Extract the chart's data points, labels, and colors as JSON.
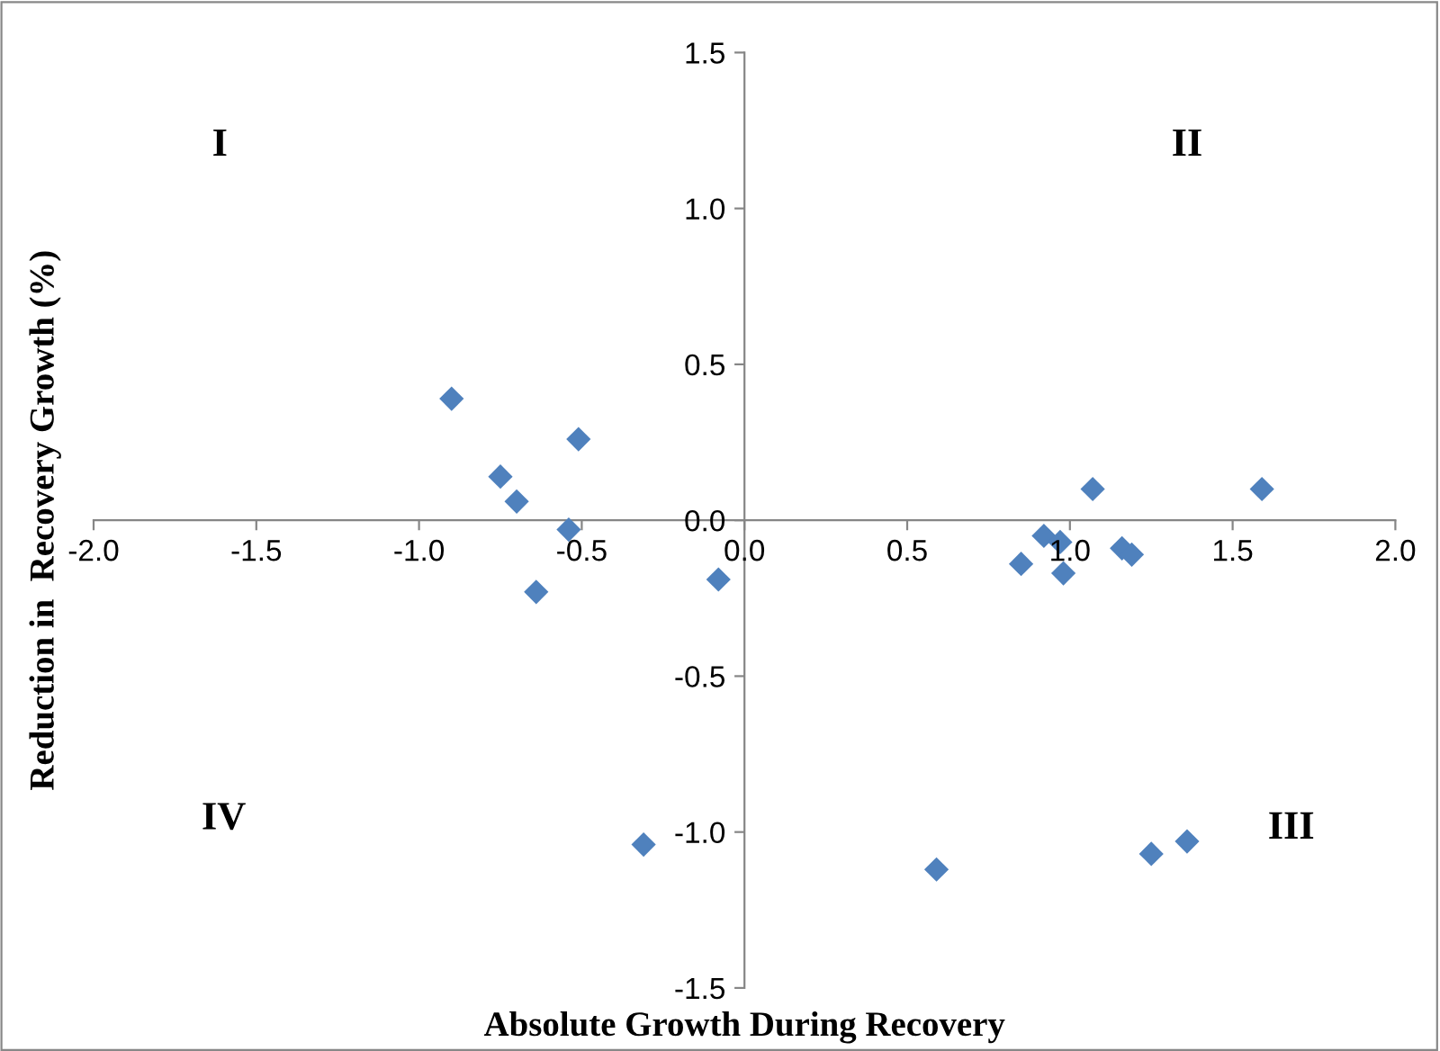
{
  "chart_data": {
    "type": "scatter",
    "xlabel": "Absolute Growth During Recovery",
    "ylabel": "Reduction in  Recovery Growth (%)",
    "annotations": [
      "I",
      "II",
      "III",
      "IV"
    ],
    "series": [
      {
        "color": "#4f81bd",
        "x": [
          -0.9,
          -0.75,
          -0.7,
          -0.51,
          -0.54,
          -0.64,
          -0.08,
          -0.31,
          0.59,
          0.85,
          0.92,
          0.97,
          0.98,
          1.07,
          1.16,
          1.19,
          1.59,
          1.25,
          1.36
        ],
        "values": [
          0.39,
          0.14,
          0.06,
          0.26,
          -0.03,
          -0.23,
          -0.19,
          -1.04,
          -1.12,
          -0.14,
          -0.05,
          -0.07,
          -0.17,
          0.1,
          -0.09,
          -0.11,
          0.1,
          -1.07,
          -1.03
        ]
      }
    ],
    "marker": "diamond",
    "xlim": [
      -2.0,
      2.0
    ],
    "ylim": [
      -1.5,
      1.5
    ],
    "xticks": [
      {
        "value": -2.0,
        "label": "-2.0"
      },
      {
        "value": -1.5,
        "label": "-1.5"
      },
      {
        "value": -1.0,
        "label": "-1.0"
      },
      {
        "value": -0.5,
        "label": "-0.5"
      },
      {
        "value": 0.0,
        "label": "0.0"
      },
      {
        "value": 0.5,
        "label": "0.5"
      },
      {
        "value": 1.0,
        "label": "1.0"
      },
      {
        "value": 1.5,
        "label": "1.5"
      },
      {
        "value": 2.0,
        "label": "2.0"
      }
    ],
    "yticks": [
      {
        "value": -1.5,
        "label": "-1.5"
      },
      {
        "value": -1.0,
        "label": "-1.0"
      },
      {
        "value": -0.5,
        "label": "-0.5"
      },
      {
        "value": 0.0,
        "label": "0.0"
      },
      {
        "value": 0.5,
        "label": "0.5"
      },
      {
        "value": 1.0,
        "label": "1.0"
      },
      {
        "value": 1.5,
        "label": "1.5"
      }
    ],
    "grid": false,
    "legend": false
  }
}
